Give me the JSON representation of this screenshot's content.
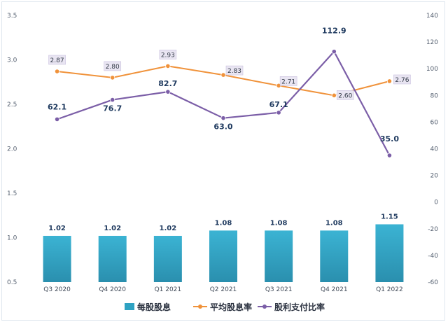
{
  "chart_data": {
    "type": "bar+line",
    "categories": [
      "Q3 2020",
      "Q4 2020",
      "Q1 2021",
      "Q2 2021",
      "Q3 2021",
      "Q4 2021",
      "Q1 2022"
    ],
    "series": [
      {
        "name": "每股股息",
        "type": "bar",
        "axis": "left",
        "color": "#2ea2c2",
        "values": [
          1.02,
          1.02,
          1.02,
          1.08,
          1.08,
          1.08,
          1.15
        ],
        "labels": [
          "1.02",
          "1.02",
          "1.02",
          "1.08",
          "1.08",
          "1.08",
          "1.15"
        ]
      },
      {
        "name": "平均股息率",
        "type": "line",
        "axis": "left",
        "color": "#f0923a",
        "values": [
          2.87,
          2.8,
          2.93,
          2.83,
          2.71,
          2.6,
          2.76
        ],
        "labels": [
          "2.87",
          "2.80",
          "2.93",
          "2.83",
          "2.71",
          "2.60",
          "2.76"
        ]
      },
      {
        "name": "股利支付比率",
        "type": "line",
        "axis": "right",
        "color": "#7b5ea7",
        "values": [
          62.1,
          76.7,
          82.7,
          63.0,
          67.1,
          112.9,
          35.0
        ],
        "labels": [
          "62.1",
          "76.7",
          "82.7",
          "63.0",
          "67.1",
          "112.9",
          "35.0"
        ]
      }
    ],
    "y_left": {
      "min": 0.5,
      "max": 3.5,
      "ticks": [
        "0.5",
        "1.0",
        "1.5",
        "2.0",
        "2.5",
        "3.0",
        "3.5"
      ]
    },
    "y_right": {
      "min": -60,
      "max": 140,
      "ticks": [
        "-60",
        "-40",
        "-20",
        "0",
        "20",
        "40",
        "60",
        "80",
        "100",
        "120",
        "140"
      ]
    },
    "grid": false,
    "legend": "bottom"
  }
}
